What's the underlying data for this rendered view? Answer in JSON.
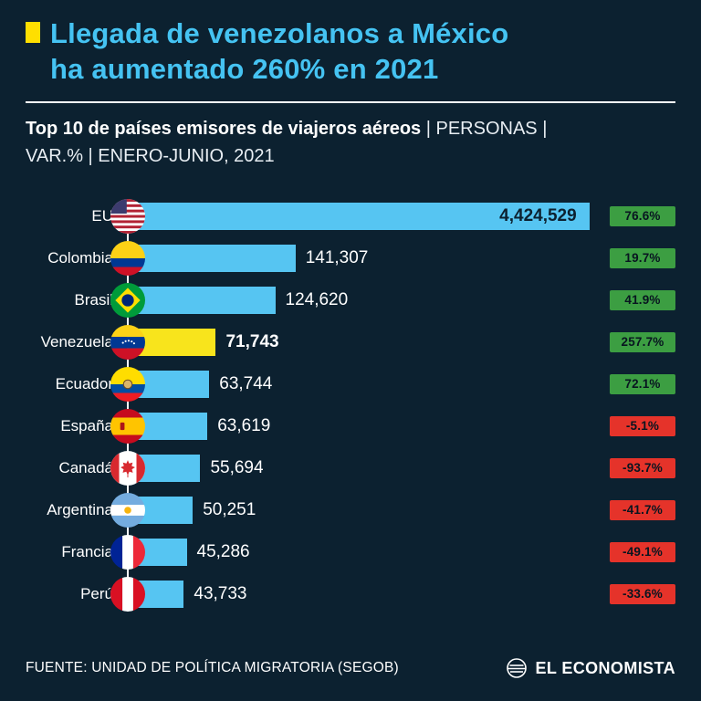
{
  "header": {
    "title_line1": "Llegada de venezolanos a México",
    "title_line2": "ha aumentado 260% en 2021",
    "subtitle_bold": "Top 10 de países emisores de viajeros aéreos",
    "subtitle_tail1": " | PERSONAS |",
    "subtitle_tail2": "VAR.% | ENERO-JUNIO, 2021"
  },
  "footer": {
    "source": "FUENTE: UNIDAD DE POLÍTICA MIGRATORIA (SEGOB)",
    "brand": "EL ECONOMISTA"
  },
  "colors": {
    "bg": "#0c2130",
    "accent": "#45c3f2",
    "bar": "#56c5f2",
    "highlight": "#f8e41c",
    "marker": "#ffdf00",
    "positive": "#3c9e42",
    "negative": "#e5332a"
  },
  "chart_data": {
    "type": "bar",
    "orientation": "horizontal",
    "title": "Top 10 de países emisores de viajeros aéreos",
    "units": "personas",
    "period": "enero-junio 2021",
    "highlight_country": "Venezuela",
    "legend": "none",
    "rows": [
      {
        "country": "EU",
        "value": 4424529,
        "value_label": "4,424,529",
        "var_pct": 76.6,
        "var_label": "76.6%",
        "bar_pct": 98,
        "highlight": false,
        "value_inside": true
      },
      {
        "country": "Colombia",
        "value": 141307,
        "value_label": "141,307",
        "var_pct": 19.7,
        "var_label": "19.7%",
        "bar_pct": 35.6,
        "highlight": false,
        "value_inside": false
      },
      {
        "country": "Brasil",
        "value": 124620,
        "value_label": "124,620",
        "var_pct": 41.9,
        "var_label": "41.9%",
        "bar_pct": 31.3,
        "highlight": false,
        "value_inside": false
      },
      {
        "country": "Venezuela",
        "value": 71743,
        "value_label": "71,743",
        "var_pct": 257.7,
        "var_label": "257.7%",
        "bar_pct": 18.7,
        "highlight": true,
        "value_inside": false
      },
      {
        "country": "Ecuador",
        "value": 63744,
        "value_label": "63,744",
        "var_pct": 72.1,
        "var_label": "72.1%",
        "bar_pct": 17.3,
        "highlight": false,
        "value_inside": false
      },
      {
        "country": "España",
        "value": 63619,
        "value_label": "63,619",
        "var_pct": -5.1,
        "var_label": "-5.1%",
        "bar_pct": 16.9,
        "highlight": false,
        "value_inside": false
      },
      {
        "country": "Canadá",
        "value": 55694,
        "value_label": "55,694",
        "var_pct": -93.7,
        "var_label": "-93.7%",
        "bar_pct": 15.4,
        "highlight": false,
        "value_inside": false
      },
      {
        "country": "Argentina",
        "value": 50251,
        "value_label": "50,251",
        "var_pct": -41.7,
        "var_label": "-41.7%",
        "bar_pct": 13.8,
        "highlight": false,
        "value_inside": false
      },
      {
        "country": "Francia",
        "value": 45286,
        "value_label": "45,286",
        "var_pct": -49.1,
        "var_label": "-49.1%",
        "bar_pct": 12.5,
        "highlight": false,
        "value_inside": false
      },
      {
        "country": "Perú",
        "value": 43733,
        "value_label": "43,733",
        "var_pct": -33.6,
        "var_label": "-33.6%",
        "bar_pct": 11.9,
        "highlight": false,
        "value_inside": false
      }
    ]
  }
}
